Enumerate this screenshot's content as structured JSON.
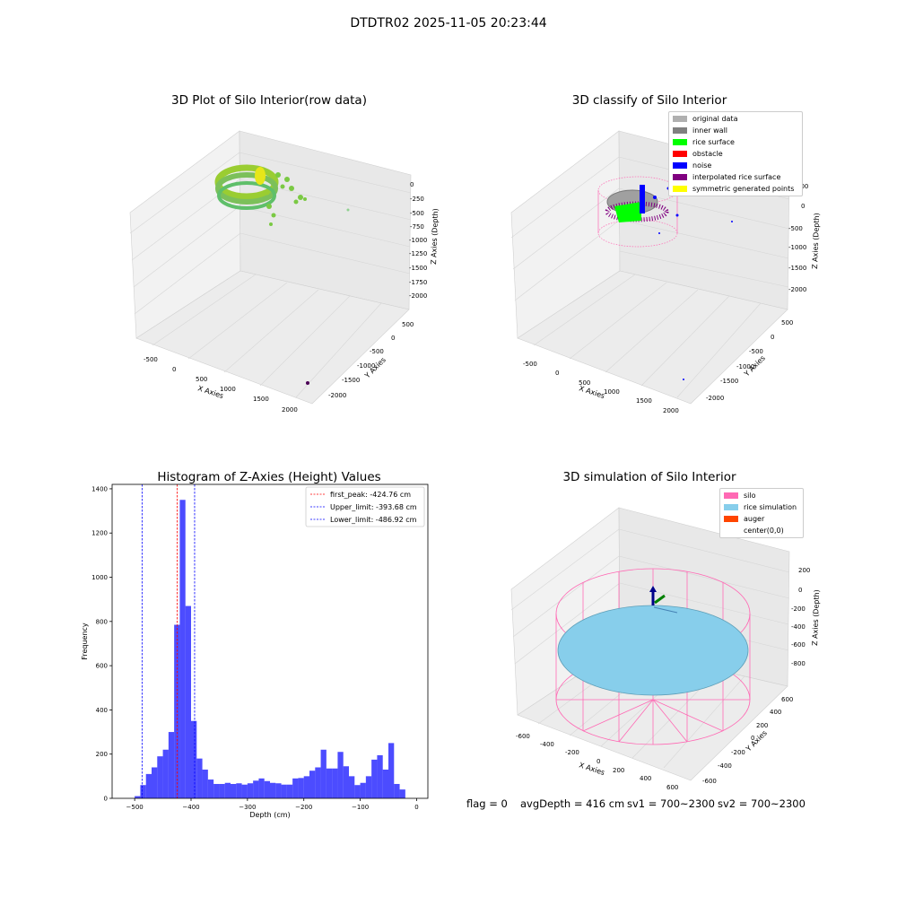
{
  "figure": {
    "suptitle": "DTDTR02 2025-11-05 20:23:44",
    "footer": {
      "flag": "flag = 0",
      "avg_depth": "avgDepth = 416 cm",
      "sv1": "sv1 = 700~2300",
      "sv2": "sv2 = 700~2300"
    }
  },
  "plot_raw": {
    "title": "3D Plot of Silo Interior(row data)",
    "xlabel": "X Axies",
    "ylabel": "Y Axies",
    "zlabel": "Z Axies (Depth)",
    "x_ticks": [
      "-500",
      "0",
      "500",
      "1000",
      "1500",
      "2000"
    ],
    "y_ticks": [
      "500",
      "0",
      "-500",
      "-1000",
      "-1500",
      "-2000"
    ],
    "z_ticks": [
      "0",
      "-250",
      "-500",
      "-750",
      "-1000",
      "-1250",
      "-1500",
      "-1750",
      "-2000"
    ]
  },
  "plot_classify": {
    "title": "3D classify of Silo Interior",
    "xlabel": "X Axies",
    "ylabel": "Y Axies",
    "zlabel": "Z Axies (Depth)",
    "x_ticks": [
      "-500",
      "0",
      "500",
      "1000",
      "1500",
      "2000"
    ],
    "y_ticks": [
      "500",
      "0",
      "-500",
      "-1000",
      "-1500",
      "-2000"
    ],
    "z_ticks": [
      "0",
      "-500",
      "-1000",
      "-1500",
      "-2000"
    ],
    "z_ticks_top": "500",
    "legend": [
      {
        "label": "original data",
        "color": "#b0b0b0"
      },
      {
        "label": "inner wall",
        "color": "#808080"
      },
      {
        "label": "rice surface",
        "color": "#00ff00"
      },
      {
        "label": "obstacle",
        "color": "#ff0000"
      },
      {
        "label": "noise",
        "color": "#0000ff"
      },
      {
        "label": "interpolated rice surface",
        "color": "#800080"
      },
      {
        "label": "symmetric generated points",
        "color": "#ffff00"
      }
    ]
  },
  "plot_sim": {
    "title": "3D simulation of Silo Interior",
    "xlabel": "X Axies",
    "ylabel": "Y Axies",
    "zlabel": "Z Axies (Depth)",
    "x_ticks": [
      "-600",
      "-400",
      "-200",
      "0",
      "200",
      "400",
      "600"
    ],
    "y_ticks": [
      "600",
      "400",
      "200",
      "0",
      "-200",
      "-400",
      "-600"
    ],
    "z_ticks": [
      "200",
      "0",
      "-200",
      "-400",
      "-600",
      "-800"
    ],
    "legend": [
      {
        "label": "silo",
        "color": "#ff69b4"
      },
      {
        "label": "rice simulation",
        "color": "#87ceeb"
      },
      {
        "label": "auger",
        "color": "#ff4500"
      },
      {
        "label": "center(0,0)",
        "color": "#ffffff"
      }
    ]
  },
  "chart_data": {
    "type": "bar",
    "title": "Histogram of Z-Axies (Height) Values",
    "xlabel": "Depth (cm)",
    "ylabel": "Frequency",
    "xlim": [
      -540,
      20
    ],
    "ylim": [
      0,
      1420
    ],
    "x_ticks": [
      -500,
      -400,
      -300,
      -200,
      -100,
      0
    ],
    "y_ticks": [
      0,
      200,
      400,
      600,
      800,
      1000,
      1200,
      1400
    ],
    "bar_color": "#0000ff",
    "bin_width": 10,
    "bins": [
      {
        "x": -500,
        "y": 10
      },
      {
        "x": -490,
        "y": 60
      },
      {
        "x": -480,
        "y": 110
      },
      {
        "x": -470,
        "y": 140
      },
      {
        "x": -460,
        "y": 190
      },
      {
        "x": -450,
        "y": 220
      },
      {
        "x": -440,
        "y": 300
      },
      {
        "x": -430,
        "y": 785
      },
      {
        "x": -420,
        "y": 1350
      },
      {
        "x": -410,
        "y": 870
      },
      {
        "x": -400,
        "y": 350
      },
      {
        "x": -390,
        "y": 180
      },
      {
        "x": -380,
        "y": 130
      },
      {
        "x": -370,
        "y": 85
      },
      {
        "x": -360,
        "y": 65
      },
      {
        "x": -350,
        "y": 65
      },
      {
        "x": -340,
        "y": 70
      },
      {
        "x": -330,
        "y": 65
      },
      {
        "x": -320,
        "y": 68
      },
      {
        "x": -310,
        "y": 62
      },
      {
        "x": -300,
        "y": 68
      },
      {
        "x": -290,
        "y": 80
      },
      {
        "x": -280,
        "y": 90
      },
      {
        "x": -270,
        "y": 78
      },
      {
        "x": -260,
        "y": 70
      },
      {
        "x": -250,
        "y": 68
      },
      {
        "x": -240,
        "y": 62
      },
      {
        "x": -230,
        "y": 62
      },
      {
        "x": -220,
        "y": 90
      },
      {
        "x": -210,
        "y": 92
      },
      {
        "x": -200,
        "y": 100
      },
      {
        "x": -190,
        "y": 125
      },
      {
        "x": -180,
        "y": 140
      },
      {
        "x": -170,
        "y": 220
      },
      {
        "x": -160,
        "y": 135
      },
      {
        "x": -150,
        "y": 135
      },
      {
        "x": -140,
        "y": 210
      },
      {
        "x": -130,
        "y": 145
      },
      {
        "x": -120,
        "y": 100
      },
      {
        "x": -110,
        "y": 60
      },
      {
        "x": -100,
        "y": 70
      },
      {
        "x": -90,
        "y": 100
      },
      {
        "x": -80,
        "y": 175
      },
      {
        "x": -70,
        "y": 195
      },
      {
        "x": -60,
        "y": 130
      },
      {
        "x": -50,
        "y": 250
      },
      {
        "x": -40,
        "y": 65
      },
      {
        "x": -30,
        "y": 40
      }
    ],
    "vlines": [
      {
        "x": -424.76,
        "color": "#ff0000",
        "label": "first_peak: -424.76 cm"
      },
      {
        "x": -393.68,
        "color": "#0000ff",
        "label": "Upper_limit: -393.68 cm"
      },
      {
        "x": -486.92,
        "color": "#0000ff",
        "label": "Lower_limit: -486.92 cm"
      }
    ],
    "legend_position": "top-right"
  }
}
